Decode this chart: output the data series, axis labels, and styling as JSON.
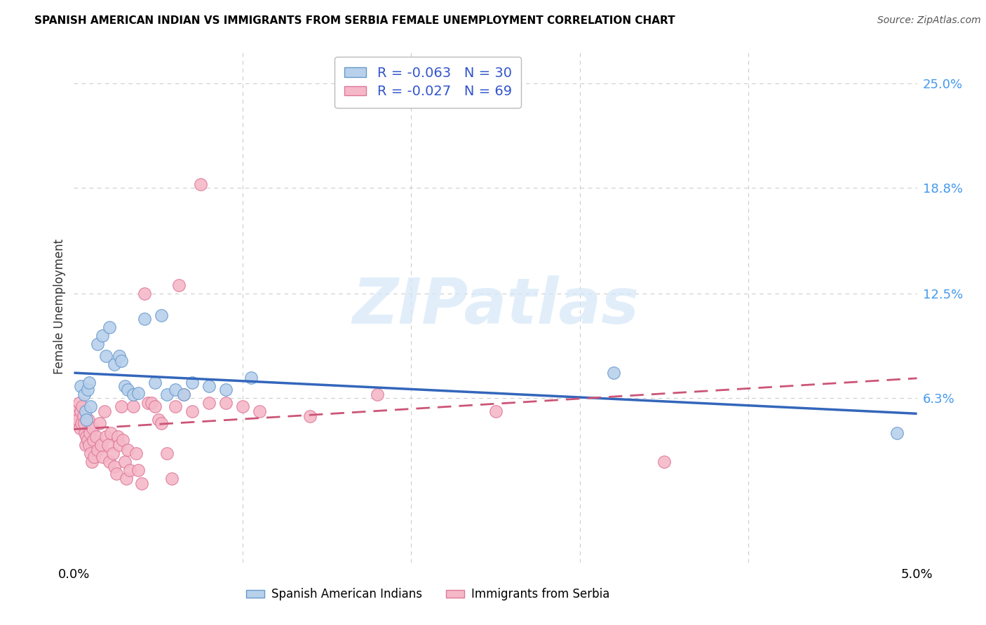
{
  "title": "SPANISH AMERICAN INDIAN VS IMMIGRANTS FROM SERBIA FEMALE UNEMPLOYMENT CORRELATION CHART",
  "source": "Source: ZipAtlas.com",
  "ylabel": "Female Unemployment",
  "right_ytick_labels": [
    "6.3%",
    "12.5%",
    "18.8%",
    "25.0%"
  ],
  "right_ytick_values": [
    6.3,
    12.5,
    18.8,
    25.0
  ],
  "xlim": [
    0.0,
    5.0
  ],
  "ylim": [
    -3.5,
    27.0
  ],
  "xaxis_label_left": "0.0%",
  "xaxis_label_right": "5.0%",
  "series1_label": "Spanish American Indians",
  "series1_face_color": "#b8d0eb",
  "series1_edge_color": "#6699cc",
  "series1_line_color": "#3366bb",
  "series1_R": "-0.063",
  "series1_N": "30",
  "series2_label": "Immigrants from Serbia",
  "series2_face_color": "#f5b8c8",
  "series2_edge_color": "#dd7799",
  "series2_line_color": "#cc5577",
  "series2_R": "-0.027",
  "series2_N": "69",
  "watermark_text": "ZIPatlas",
  "watermark_color": "#d5e8f8",
  "grid_color": "#cccccc",
  "bg_color": "#ffffff",
  "legend_text_color": "#3355cc",
  "blue_pts": [
    [
      0.04,
      7.0
    ],
    [
      0.06,
      6.5
    ],
    [
      0.07,
      5.5
    ],
    [
      0.075,
      5.0
    ],
    [
      0.08,
      6.8
    ],
    [
      0.09,
      7.2
    ],
    [
      0.1,
      5.8
    ],
    [
      0.14,
      9.5
    ],
    [
      0.17,
      10.0
    ],
    [
      0.19,
      8.8
    ],
    [
      0.21,
      10.5
    ],
    [
      0.24,
      8.3
    ],
    [
      0.27,
      8.8
    ],
    [
      0.28,
      8.5
    ],
    [
      0.3,
      7.0
    ],
    [
      0.32,
      6.8
    ],
    [
      0.35,
      6.5
    ],
    [
      0.38,
      6.6
    ],
    [
      0.42,
      11.0
    ],
    [
      0.48,
      7.2
    ],
    [
      0.52,
      11.2
    ],
    [
      0.55,
      6.5
    ],
    [
      0.6,
      6.8
    ],
    [
      0.65,
      6.5
    ],
    [
      0.7,
      7.2
    ],
    [
      0.8,
      7.0
    ],
    [
      0.9,
      6.8
    ],
    [
      1.05,
      7.5
    ],
    [
      3.2,
      7.8
    ],
    [
      4.88,
      4.2
    ]
  ],
  "pink_pts": [
    [
      0.01,
      5.5
    ],
    [
      0.015,
      5.2
    ],
    [
      0.02,
      4.8
    ],
    [
      0.025,
      5.0
    ],
    [
      0.03,
      6.0
    ],
    [
      0.035,
      4.5
    ],
    [
      0.04,
      5.5
    ],
    [
      0.045,
      4.8
    ],
    [
      0.05,
      5.8
    ],
    [
      0.055,
      5.2
    ],
    [
      0.06,
      4.8
    ],
    [
      0.065,
      4.2
    ],
    [
      0.07,
      3.5
    ],
    [
      0.075,
      4.0
    ],
    [
      0.08,
      3.8
    ],
    [
      0.085,
      5.0
    ],
    [
      0.09,
      3.5
    ],
    [
      0.095,
      4.2
    ],
    [
      0.1,
      3.0
    ],
    [
      0.105,
      2.5
    ],
    [
      0.11,
      4.5
    ],
    [
      0.115,
      3.8
    ],
    [
      0.12,
      2.8
    ],
    [
      0.13,
      4.0
    ],
    [
      0.14,
      3.2
    ],
    [
      0.15,
      4.8
    ],
    [
      0.16,
      3.5
    ],
    [
      0.17,
      2.8
    ],
    [
      0.18,
      5.5
    ],
    [
      0.19,
      4.0
    ],
    [
      0.2,
      3.5
    ],
    [
      0.21,
      2.5
    ],
    [
      0.22,
      4.2
    ],
    [
      0.23,
      3.0
    ],
    [
      0.24,
      2.2
    ],
    [
      0.25,
      1.8
    ],
    [
      0.26,
      4.0
    ],
    [
      0.27,
      3.5
    ],
    [
      0.28,
      5.8
    ],
    [
      0.29,
      3.8
    ],
    [
      0.3,
      2.5
    ],
    [
      0.31,
      1.5
    ],
    [
      0.32,
      3.2
    ],
    [
      0.33,
      2.0
    ],
    [
      0.35,
      5.8
    ],
    [
      0.37,
      3.0
    ],
    [
      0.38,
      2.0
    ],
    [
      0.4,
      1.2
    ],
    [
      0.42,
      12.5
    ],
    [
      0.44,
      6.0
    ],
    [
      0.46,
      6.0
    ],
    [
      0.48,
      5.8
    ],
    [
      0.5,
      5.0
    ],
    [
      0.52,
      4.8
    ],
    [
      0.55,
      3.0
    ],
    [
      0.58,
      1.5
    ],
    [
      0.6,
      5.8
    ],
    [
      0.62,
      13.0
    ],
    [
      0.65,
      6.5
    ],
    [
      0.7,
      5.5
    ],
    [
      0.75,
      19.0
    ],
    [
      0.8,
      6.0
    ],
    [
      0.9,
      6.0
    ],
    [
      1.0,
      5.8
    ],
    [
      1.1,
      5.5
    ],
    [
      1.4,
      5.2
    ],
    [
      1.8,
      6.5
    ],
    [
      2.5,
      5.5
    ],
    [
      3.5,
      2.5
    ]
  ]
}
